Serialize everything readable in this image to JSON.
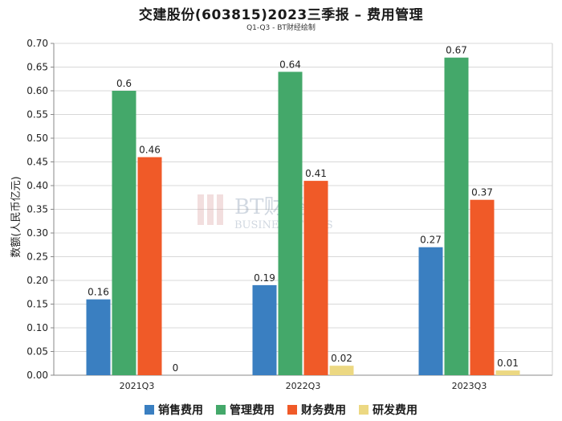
{
  "chart_data": {
    "type": "bar",
    "title": "交建股份(603815)2023三季报 – 费用管理",
    "subtitle": "Q1-Q3 - BT财经绘制",
    "xlabel": "",
    "ylabel": "数额(人民币亿元)",
    "ylim": [
      0,
      0.7
    ],
    "ytick_step": 0.05,
    "yticks": [
      "0.00",
      "0.05",
      "0.10",
      "0.15",
      "0.20",
      "0.25",
      "0.30",
      "0.35",
      "0.40",
      "0.45",
      "0.50",
      "0.55",
      "0.60",
      "0.65",
      "0.70"
    ],
    "categories": [
      "2021Q3",
      "2022Q3",
      "2023Q3"
    ],
    "series": [
      {
        "name": "销售费用",
        "color": "#3a7fc1",
        "values": [
          0.16,
          0.19,
          0.27
        ],
        "labels": [
          "0.16",
          "0.19",
          "0.27"
        ]
      },
      {
        "name": "管理费用",
        "color": "#44a86a",
        "values": [
          0.6,
          0.64,
          0.67
        ],
        "labels": [
          "0.6",
          "0.64",
          "0.67"
        ]
      },
      {
        "name": "财务费用",
        "color": "#f05a28",
        "values": [
          0.46,
          0.41,
          0.37
        ],
        "labels": [
          "0.46",
          "0.41",
          "0.37"
        ]
      },
      {
        "name": "研发费用",
        "color": "#ecd882",
        "values": [
          0,
          0.02,
          0.01
        ],
        "labels": [
          "0",
          "0.02",
          "0.01"
        ]
      }
    ],
    "grid": true,
    "legend_position": "bottom"
  },
  "watermark": {
    "brand": "BT财经",
    "tagline": "BUSINESS TIMES"
  }
}
